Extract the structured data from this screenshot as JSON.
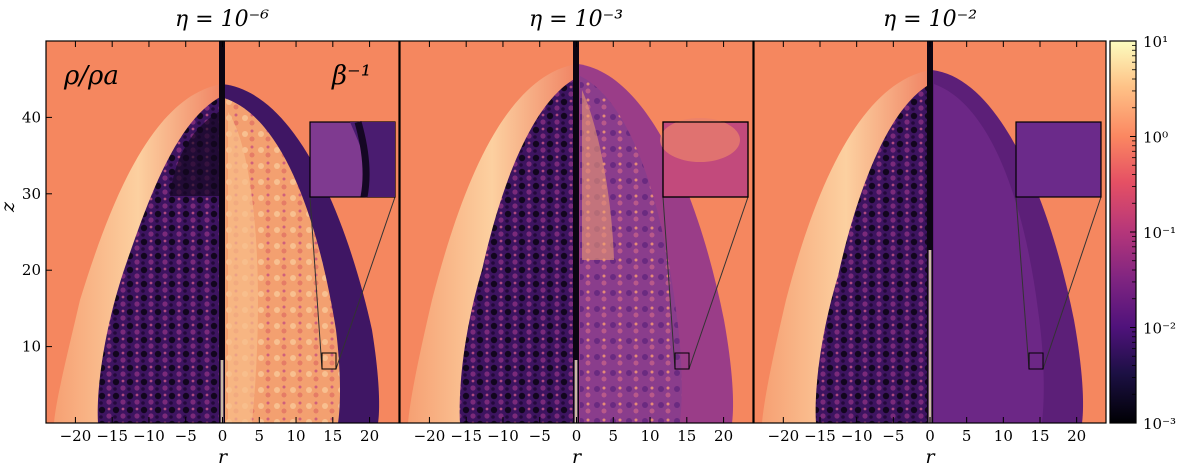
{
  "panel_titles": [
    "η = 10⁻⁶",
    "η = 10⁻³",
    "η = 10⁻²"
  ],
  "left_half_label": "ρ/ρa",
  "right_half_label": "β⁻¹",
  "colorbar": {
    "colormap": "magma",
    "scale": "log",
    "range": [
      0.001,
      10
    ],
    "tick_labels": [
      "10¹",
      "10⁰",
      "10⁻¹",
      "10⁻²",
      "10⁻³"
    ]
  },
  "chart_data": [
    {
      "type": "heatmap",
      "title": "η = 10⁻⁶",
      "xlabel": "r",
      "ylabel": "z",
      "xlim": [
        -24,
        24
      ],
      "ylim": [
        0,
        50
      ],
      "xticks": [
        -20,
        -15,
        -10,
        -5,
        0,
        5,
        10,
        15,
        20
      ],
      "yticks": [
        10,
        20,
        30,
        40
      ],
      "left_quantity": "ρ/ρa",
      "right_quantity": "β⁻¹",
      "inset_region": {
        "r": [
          13.5,
          15.5
        ],
        "z": [
          7.5,
          10
        ]
      }
    },
    {
      "type": "heatmap",
      "title": "η = 10⁻³",
      "xlabel": "r",
      "xlim": [
        -24,
        24
      ],
      "ylim": [
        0,
        50
      ],
      "xticks": [
        -20,
        -15,
        -10,
        -5,
        0,
        5,
        10,
        15,
        20
      ],
      "inset_region": {
        "r": [
          13.5,
          15.5
        ],
        "z": [
          7.5,
          10
        ]
      }
    },
    {
      "type": "heatmap",
      "title": "η = 10⁻²",
      "xlabel": "r",
      "xlim": [
        -24,
        24
      ],
      "ylim": [
        0,
        50
      ],
      "xticks": [
        -20,
        -15,
        -10,
        -5,
        0,
        5,
        10,
        15,
        20
      ],
      "inset_region": {
        "r": [
          13.5,
          15.5
        ],
        "z": [
          7.5,
          10
        ]
      }
    }
  ]
}
